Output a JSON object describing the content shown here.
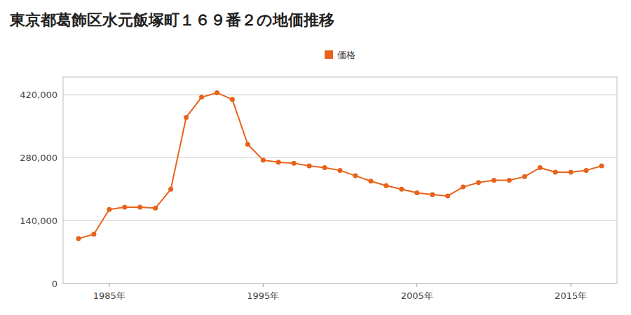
{
  "chart_data": {
    "type": "line",
    "title": "東京都葛飾区水元飯塚町１６９番２の地価推移",
    "x": [
      1983,
      1984,
      1985,
      1986,
      1987,
      1988,
      1989,
      1990,
      1991,
      1992,
      1993,
      1994,
      1995,
      1996,
      1997,
      1998,
      1999,
      2000,
      2001,
      2002,
      2003,
      2004,
      2005,
      2006,
      2007,
      2008,
      2009,
      2010,
      2011,
      2012,
      2013,
      2014,
      2015,
      2016,
      2017
    ],
    "series": [
      {
        "name": "価格",
        "color": "#e8621a",
        "marker": "circle",
        "line_style": "solid",
        "values": [
          100000,
          110000,
          165000,
          170000,
          170000,
          168000,
          210000,
          370000,
          415000,
          425000,
          410000,
          310000,
          275000,
          270000,
          268000,
          262000,
          258000,
          252000,
          240000,
          228000,
          218000,
          210000,
          202000,
          198000,
          195000,
          215000,
          225000,
          230000,
          230000,
          238000,
          258000,
          248000,
          248000,
          252000,
          262000
        ]
      }
    ],
    "xlim": [
      1982,
      2018
    ],
    "ylim": [
      0,
      460000
    ],
    "xticks": [
      {
        "value": 1985,
        "label": "1985年"
      },
      {
        "value": 1995,
        "label": "1995年"
      },
      {
        "value": 2005,
        "label": "2005年"
      },
      {
        "value": 2015,
        "label": "2015年"
      }
    ],
    "yticks": [
      0,
      {
        "value": 140000,
        "label": "140,000"
      },
      {
        "value": 280000,
        "label": "280,000"
      },
      {
        "value": 420000,
        "label": "420,000"
      }
    ],
    "grid": "y",
    "legend": "top"
  }
}
